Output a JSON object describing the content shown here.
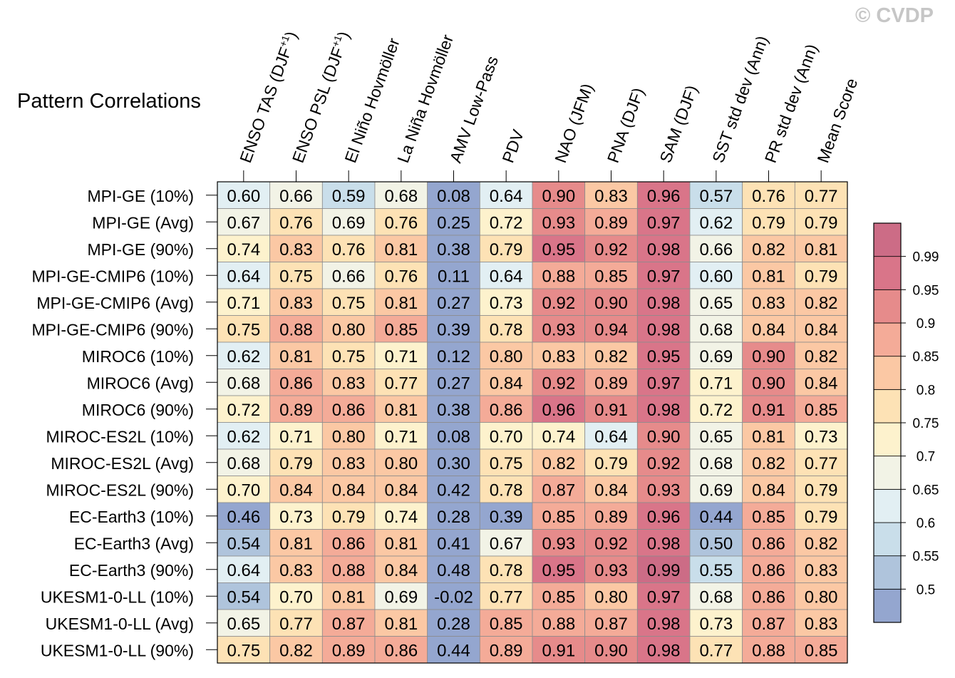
{
  "title": "Pattern Correlations",
  "watermark": "© CVDP",
  "chart_data": {
    "type": "heatmap",
    "title": "Pattern Correlations",
    "columns": [
      {
        "base": "ENSO TAS (DJF",
        "sup": "+1",
        "tail": ")"
      },
      {
        "base": "ENSO PSL (DJF",
        "sup": "+1",
        "tail": ")"
      },
      {
        "base": "El Niño Hovmöller",
        "sup": "",
        "tail": ""
      },
      {
        "base": "La Niña Hovmöller",
        "sup": "",
        "tail": ""
      },
      {
        "base": "AMV Low-Pass",
        "sup": "",
        "tail": ""
      },
      {
        "base": "PDV",
        "sup": "",
        "tail": ""
      },
      {
        "base": "NAO (JFM)",
        "sup": "",
        "tail": ""
      },
      {
        "base": "PNA (DJF)",
        "sup": "",
        "tail": ""
      },
      {
        "base": "SAM (DJF)",
        "sup": "",
        "tail": ""
      },
      {
        "base": "SST std dev (Ann)",
        "sup": "",
        "tail": ""
      },
      {
        "base": "PR std dev (Ann)",
        "sup": "",
        "tail": ""
      },
      {
        "base": "Mean Score",
        "sup": "",
        "tail": ""
      }
    ],
    "rows": [
      "MPI-GE (10%)",
      "MPI-GE (Avg)",
      "MPI-GE (90%)",
      "MPI-GE-CMIP6 (10%)",
      "MPI-GE-CMIP6 (Avg)",
      "MPI-GE-CMIP6 (90%)",
      "MIROC6 (10%)",
      "MIROC6 (Avg)",
      "MIROC6 (90%)",
      "MIROC-ES2L (10%)",
      "MIROC-ES2L (Avg)",
      "MIROC-ES2L (90%)",
      "EC-Earth3 (10%)",
      "EC-Earth3 (Avg)",
      "EC-Earth3 (90%)",
      "UKESM1-0-LL (10%)",
      "UKESM1-0-LL (Avg)",
      "UKESM1-0-LL (90%)"
    ],
    "values": [
      [
        "0.60",
        "0.66",
        "0.59",
        "0.68",
        "0.08",
        "0.64",
        "0.90",
        "0.83",
        "0.96",
        "0.57",
        "0.76",
        "0.77"
      ],
      [
        "0.67",
        "0.76",
        "0.69",
        "0.76",
        "0.25",
        "0.72",
        "0.93",
        "0.89",
        "0.97",
        "0.62",
        "0.79",
        "0.79"
      ],
      [
        "0.74",
        "0.83",
        "0.76",
        "0.81",
        "0.38",
        "0.79",
        "0.95",
        "0.92",
        "0.98",
        "0.66",
        "0.82",
        "0.81"
      ],
      [
        "0.64",
        "0.75",
        "0.66",
        "0.76",
        "0.11",
        "0.64",
        "0.88",
        "0.85",
        "0.97",
        "0.60",
        "0.81",
        "0.79"
      ],
      [
        "0.71",
        "0.83",
        "0.75",
        "0.81",
        "0.27",
        "0.73",
        "0.92",
        "0.90",
        "0.98",
        "0.65",
        "0.83",
        "0.82"
      ],
      [
        "0.75",
        "0.88",
        "0.80",
        "0.85",
        "0.39",
        "0.78",
        "0.93",
        "0.94",
        "0.98",
        "0.68",
        "0.84",
        "0.84"
      ],
      [
        "0.62",
        "0.81",
        "0.75",
        "0.71",
        "0.12",
        "0.80",
        "0.83",
        "0.82",
        "0.95",
        "0.69",
        "0.90",
        "0.82"
      ],
      [
        "0.68",
        "0.86",
        "0.83",
        "0.77",
        "0.27",
        "0.84",
        "0.92",
        "0.89",
        "0.97",
        "0.71",
        "0.90",
        "0.84"
      ],
      [
        "0.72",
        "0.89",
        "0.86",
        "0.81",
        "0.38",
        "0.86",
        "0.96",
        "0.91",
        "0.98",
        "0.72",
        "0.91",
        "0.85"
      ],
      [
        "0.62",
        "0.71",
        "0.80",
        "0.71",
        "0.08",
        "0.70",
        "0.74",
        "0.64",
        "0.90",
        "0.65",
        "0.81",
        "0.73"
      ],
      [
        "0.68",
        "0.79",
        "0.83",
        "0.80",
        "0.30",
        "0.75",
        "0.82",
        "0.79",
        "0.92",
        "0.68",
        "0.82",
        "0.77"
      ],
      [
        "0.70",
        "0.84",
        "0.84",
        "0.84",
        "0.42",
        "0.78",
        "0.87",
        "0.84",
        "0.93",
        "0.69",
        "0.84",
        "0.79"
      ],
      [
        "0.46",
        "0.73",
        "0.79",
        "0.74",
        "0.28",
        "0.39",
        "0.85",
        "0.89",
        "0.96",
        "0.44",
        "0.85",
        "0.79"
      ],
      [
        "0.54",
        "0.81",
        "0.86",
        "0.81",
        "0.41",
        "0.67",
        "0.93",
        "0.92",
        "0.98",
        "0.50",
        "0.86",
        "0.82"
      ],
      [
        "0.64",
        "0.83",
        "0.88",
        "0.84",
        "0.48",
        "0.78",
        "0.95",
        "0.93",
        "0.99",
        "0.55",
        "0.86",
        "0.83"
      ],
      [
        "0.54",
        "0.70",
        "0.81",
        "0.69",
        "-0.02",
        "0.77",
        "0.85",
        "0.80",
        "0.97",
        "0.68",
        "0.86",
        "0.80"
      ],
      [
        "0.65",
        "0.77",
        "0.87",
        "0.81",
        "0.28",
        "0.85",
        "0.88",
        "0.87",
        "0.98",
        "0.73",
        "0.87",
        "0.83"
      ],
      [
        "0.75",
        "0.82",
        "0.89",
        "0.86",
        "0.44",
        "0.89",
        "0.91",
        "0.90",
        "0.98",
        "0.77",
        "0.88",
        "0.85"
      ]
    ],
    "colorbar": {
      "levels": [
        "0.5",
        "0.55",
        "0.6",
        "0.65",
        "0.7",
        "0.75",
        "0.8",
        "0.85",
        "0.9",
        "0.95",
        "0.99"
      ],
      "level_values": [
        0.5,
        0.55,
        0.6,
        0.65,
        0.7,
        0.75,
        0.8,
        0.85,
        0.9,
        0.95,
        0.99
      ],
      "colors": [
        "#94a6cf",
        "#afc4dc",
        "#c9deea",
        "#e2eff3",
        "#f2f3e6",
        "#fdf2cd",
        "#fde2b5",
        "#fbc8a4",
        "#f4ab98",
        "#e68b8b",
        "#d97589",
        "#cc6c86"
      ]
    }
  }
}
